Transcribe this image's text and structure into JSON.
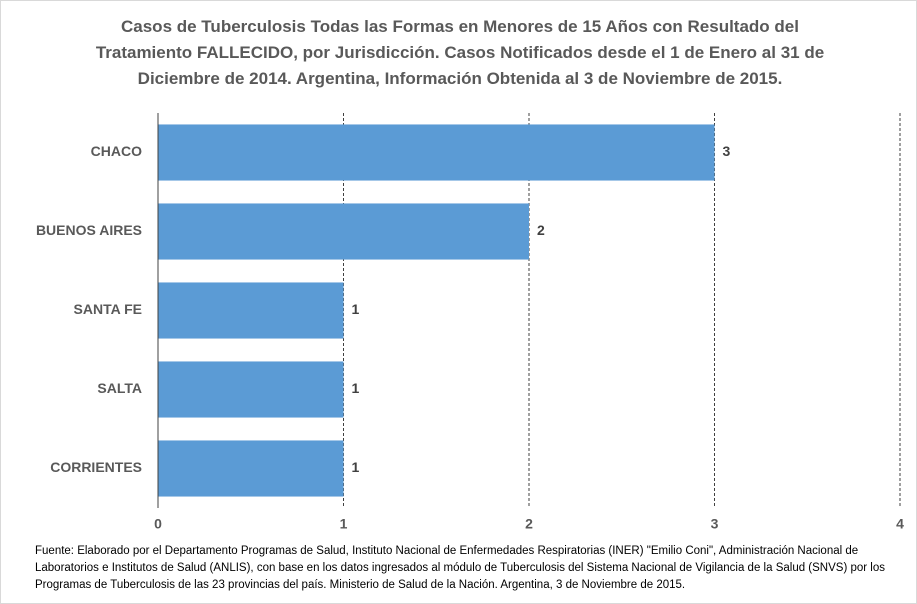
{
  "chart_data": {
    "type": "bar",
    "orientation": "horizontal",
    "title": "Casos de Tuberculosis Todas las Formas en Menores de 15 Años con Resultado del Tratamiento FALLECIDO, por Jurisdicción. Casos Notificados desde el 1 de Enero al 31 de Diciembre de 2014. Argentina, Información Obtenida al 3 de Noviembre de 2015.",
    "categories": [
      "CHACO",
      "BUENOS AIRES",
      "SANTA FE",
      "SALTA",
      "CORRIENTES"
    ],
    "values": [
      3,
      2,
      1,
      1,
      1
    ],
    "color": "#5b9bd5",
    "xlim": [
      0,
      4
    ],
    "xticks": [
      0,
      1,
      2,
      3,
      4
    ],
    "grid": true,
    "footnote": "Fuente: Elaborado por el Departamento Programas de Salud, Instituto Nacional de Enfermedades Respiratorias (INER) \"Emilio Coni\", Administración Nacional de Laboratorios e Institutos de Salud (ANLIS), con base en los datos ingresados al módulo de Tuberculosis del Sistema Nacional de Vigilancia de la Salud (SNVS) por los Programas de Tuberculosis de las 23 provincias del país. Ministerio de Salud de la Nación. Argentina,  3 de Noviembre de 2015."
  }
}
